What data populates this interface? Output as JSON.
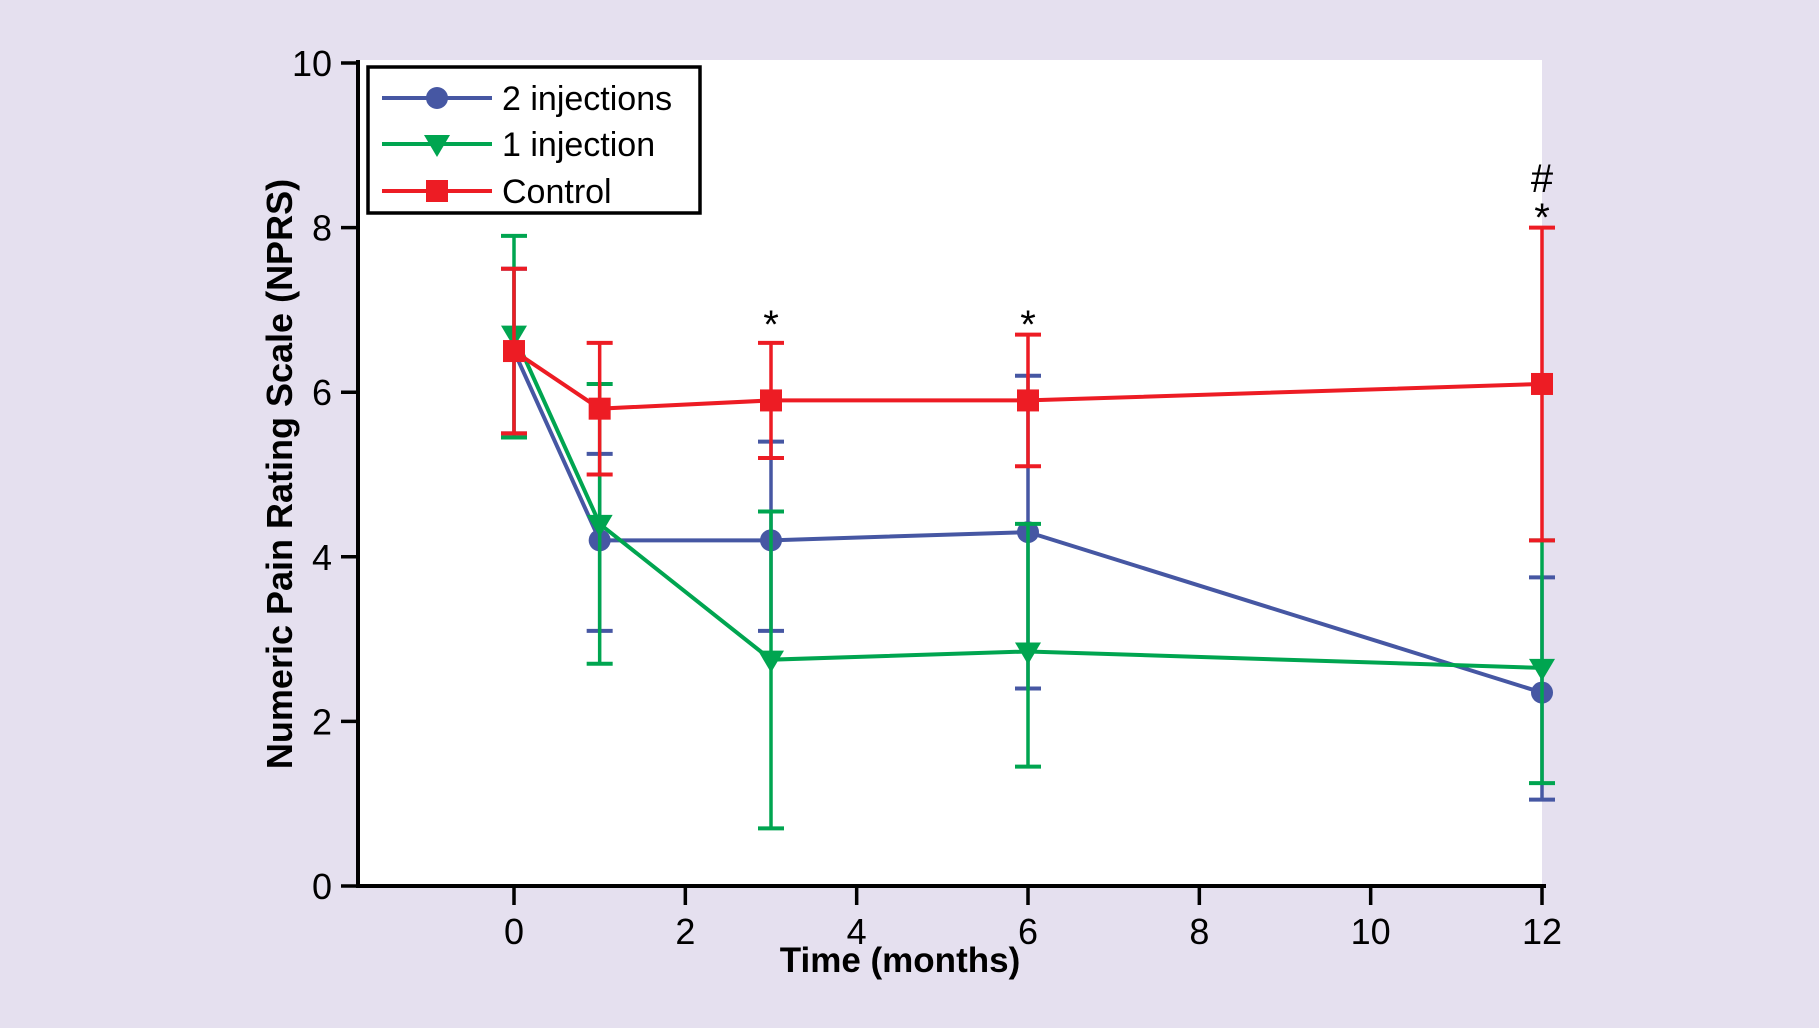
{
  "figure": {
    "background_color": "#e5e0ef",
    "plot_background_color": "#ffffff",
    "axis_color": "#000000",
    "text_color": "#000000"
  },
  "chart_data": {
    "type": "line",
    "title": "",
    "xlabel": "Time (months)",
    "ylabel": "Numeric Pain Rating Scale (NPRS)",
    "x_ticks": [
      0,
      2,
      4,
      6,
      8,
      10,
      12
    ],
    "y_ticks": [
      0,
      2,
      4,
      6,
      8,
      10
    ],
    "xlim": [
      -1.8,
      12
    ],
    "ylim": [
      0,
      10
    ],
    "grid": false,
    "error_bars": true,
    "legend": {
      "position": "top-left",
      "entries": [
        "2 injections",
        "1 injection",
        "Control"
      ]
    },
    "x": [
      0,
      1,
      3,
      6,
      12
    ],
    "series": [
      {
        "name": "2 injections",
        "marker": "circle",
        "color": "#4657a3",
        "values": [
          6.5,
          4.2,
          4.2,
          4.3,
          2.35
        ],
        "err_low": [
          5.5,
          3.1,
          3.1,
          2.4,
          1.05
        ],
        "err_high": [
          7.5,
          5.25,
          5.4,
          6.2,
          3.75
        ]
      },
      {
        "name": "1 injection",
        "marker": "triangle-down",
        "color": "#00a550",
        "values": [
          6.7,
          4.4,
          2.75,
          2.85,
          2.65
        ],
        "err_low": [
          5.45,
          2.7,
          0.7,
          1.45,
          1.25
        ],
        "err_high": [
          7.9,
          6.1,
          4.55,
          4.4,
          4.2
        ]
      },
      {
        "name": "Control",
        "marker": "square",
        "color": "#ed1c24",
        "values": [
          6.5,
          5.8,
          5.9,
          5.9,
          6.1
        ],
        "err_low": [
          5.5,
          5.0,
          5.2,
          5.1,
          4.2
        ],
        "err_high": [
          7.5,
          6.6,
          6.6,
          6.7,
          8.0
        ]
      }
    ],
    "annotations": [
      {
        "text": "*",
        "x": 3,
        "y": 6.9
      },
      {
        "text": "*",
        "x": 6,
        "y": 6.9
      },
      {
        "text": "*",
        "x": 12,
        "y": 8.2
      },
      {
        "text": "#",
        "x": 12,
        "y": 8.6
      }
    ]
  }
}
